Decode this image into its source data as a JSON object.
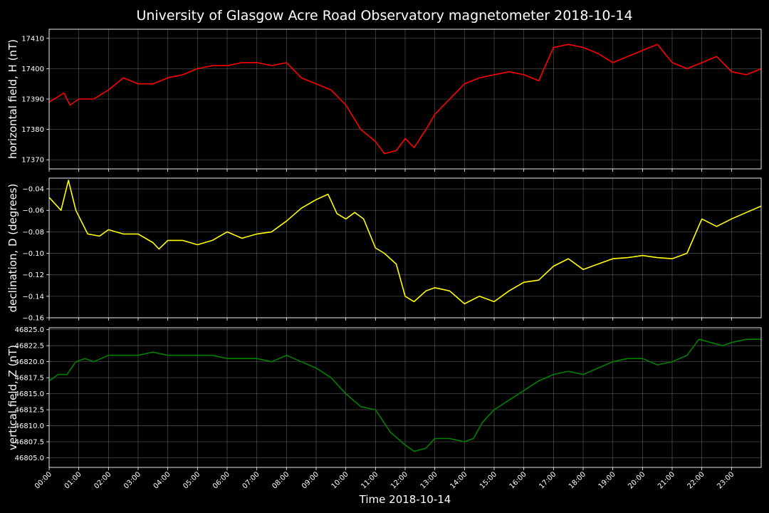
{
  "chart_data": {
    "type": "line",
    "title": "University of Glasgow Acre Road Observatory magnetometer 2018-10-14",
    "xlabel": "Time 2018-10-14",
    "x_ticks": [
      "00:00",
      "01:00",
      "02:00",
      "03:00",
      "04:00",
      "05:00",
      "06:00",
      "07:00",
      "08:00",
      "09:00",
      "10:00",
      "11:00",
      "12:00",
      "13:00",
      "14:00",
      "15:00",
      "16:00",
      "17:00",
      "18:00",
      "19:00",
      "20:00",
      "21:00",
      "22:00",
      "23:00"
    ],
    "xlim_hours": [
      0,
      24
    ],
    "grid": true,
    "panels": [
      {
        "name": "horizontal",
        "ylabel": "horizontal field, H (nT)",
        "color": "#ff0000",
        "ylim": [
          17367,
          17413
        ],
        "yticks": [
          17370,
          17380,
          17390,
          17400,
          17410
        ],
        "ytick_labels": [
          "17370",
          "17380",
          "17390",
          "17400",
          "17410"
        ],
        "x": [
          0,
          0.5,
          0.7,
          1,
          1.5,
          2,
          2.5,
          3,
          3.5,
          4,
          4.5,
          5,
          5.5,
          6,
          6.5,
          7,
          7.5,
          8,
          8.5,
          9,
          9.5,
          10,
          10.5,
          11,
          11.3,
          11.7,
          12,
          12.3,
          12.7,
          13,
          13.5,
          14,
          14.5,
          15,
          15.5,
          16,
          16.5,
          17,
          17.5,
          18,
          18.5,
          19,
          19.5,
          20,
          20.5,
          21,
          21.5,
          22,
          22.5,
          23,
          23.5,
          24
        ],
        "y": [
          17389,
          17392,
          17388,
          17390,
          17390,
          17393,
          17397,
          17395,
          17395,
          17397,
          17398,
          17400,
          17401,
          17401,
          17402,
          17402,
          17401,
          17402,
          17397,
          17395,
          17393,
          17388,
          17380,
          17376,
          17372,
          17373,
          17377,
          17374,
          17380,
          17385,
          17390,
          17395,
          17397,
          17398,
          17399,
          17398,
          17396,
          17407,
          17408,
          17407,
          17405,
          17402,
          17404,
          17406,
          17408,
          17402,
          17400,
          17402,
          17404,
          17399,
          17398,
          17400
        ]
      },
      {
        "name": "declination",
        "ylabel": "declination, D (degrees)",
        "color": "#ffff00",
        "ylim": [
          -0.16,
          -0.03
        ],
        "yticks": [
          -0.16,
          -0.14,
          -0.12,
          -0.1,
          -0.08,
          -0.06,
          -0.04
        ],
        "ytick_labels": [
          "−0.16",
          "−0.14",
          "−0.12",
          "−0.10",
          "−0.08",
          "−0.06",
          "−0.04"
        ],
        "x": [
          0,
          0.4,
          0.65,
          0.9,
          1.3,
          1.7,
          2,
          2.5,
          3,
          3.5,
          3.7,
          4,
          4.5,
          5,
          5.5,
          6,
          6.5,
          7,
          7.5,
          8,
          8.5,
          9,
          9.4,
          9.7,
          10,
          10.3,
          10.6,
          11,
          11.3,
          11.7,
          12,
          12.3,
          12.7,
          13,
          13.5,
          14,
          14.5,
          15,
          15.5,
          16,
          16.5,
          17,
          17.5,
          18,
          18.5,
          19,
          19.5,
          20,
          20.5,
          21,
          21.5,
          22,
          22.5,
          23,
          23.5,
          24
        ],
        "y": [
          -0.048,
          -0.06,
          -0.032,
          -0.06,
          -0.082,
          -0.084,
          -0.078,
          -0.082,
          -0.082,
          -0.09,
          -0.096,
          -0.088,
          -0.088,
          -0.092,
          -0.088,
          -0.08,
          -0.086,
          -0.082,
          -0.08,
          -0.07,
          -0.058,
          -0.05,
          -0.045,
          -0.063,
          -0.068,
          -0.062,
          -0.068,
          -0.095,
          -0.1,
          -0.11,
          -0.14,
          -0.145,
          -0.135,
          -0.132,
          -0.135,
          -0.147,
          -0.14,
          -0.145,
          -0.135,
          -0.127,
          -0.125,
          -0.112,
          -0.105,
          -0.115,
          -0.11,
          -0.105,
          -0.104,
          -0.102,
          -0.104,
          -0.105,
          -0.1,
          -0.068,
          -0.075,
          -0.068,
          -0.062,
          -0.056
        ]
      },
      {
        "name": "vertical",
        "ylabel": "vertical field, Z (nT)",
        "color": "#008000",
        "ylim": [
          46803.5,
          46825.3
        ],
        "yticks": [
          46805.0,
          46807.5,
          46810.0,
          46812.5,
          46815.0,
          46817.5,
          46820.0,
          46822.5,
          46825.0
        ],
        "ytick_labels": [
          "46805.0",
          "46807.5",
          "46810.0",
          "46812.5",
          "46815.0",
          "46817.5",
          "46820.0",
          "46822.5",
          "46825.0"
        ],
        "x": [
          0,
          0.3,
          0.6,
          0.9,
          1.2,
          1.5,
          2,
          2.5,
          3,
          3.5,
          4,
          4.5,
          5,
          5.5,
          6,
          6.5,
          7,
          7.5,
          8,
          8.5,
          9,
          9.5,
          10,
          10.5,
          11,
          11.5,
          12,
          12.3,
          12.7,
          13,
          13.5,
          14,
          14.3,
          14.6,
          15,
          15.5,
          16,
          16.5,
          17,
          17.5,
          18,
          18.5,
          19,
          19.5,
          20,
          20.5,
          21,
          21.5,
          21.9,
          22.3,
          22.7,
          23,
          23.5,
          24
        ],
        "y": [
          46817,
          46818,
          46818,
          46820,
          46820.5,
          46820,
          46821,
          46821,
          46821,
          46821.5,
          46821,
          46821,
          46821,
          46821,
          46820.5,
          46820.5,
          46820.5,
          46820,
          46821,
          46820,
          46819,
          46817.5,
          46815,
          46813,
          46812.5,
          46809,
          46807,
          46806,
          46806.5,
          46808,
          46808,
          46807.5,
          46808,
          46810.5,
          46812.5,
          46814,
          46815.5,
          46817,
          46818,
          46818.5,
          46818,
          46819,
          46820,
          46820.5,
          46820.5,
          46819.5,
          46820,
          46821,
          46823.5,
          46823,
          46822.5,
          46823,
          46823.5,
          46823.5
        ]
      }
    ]
  }
}
